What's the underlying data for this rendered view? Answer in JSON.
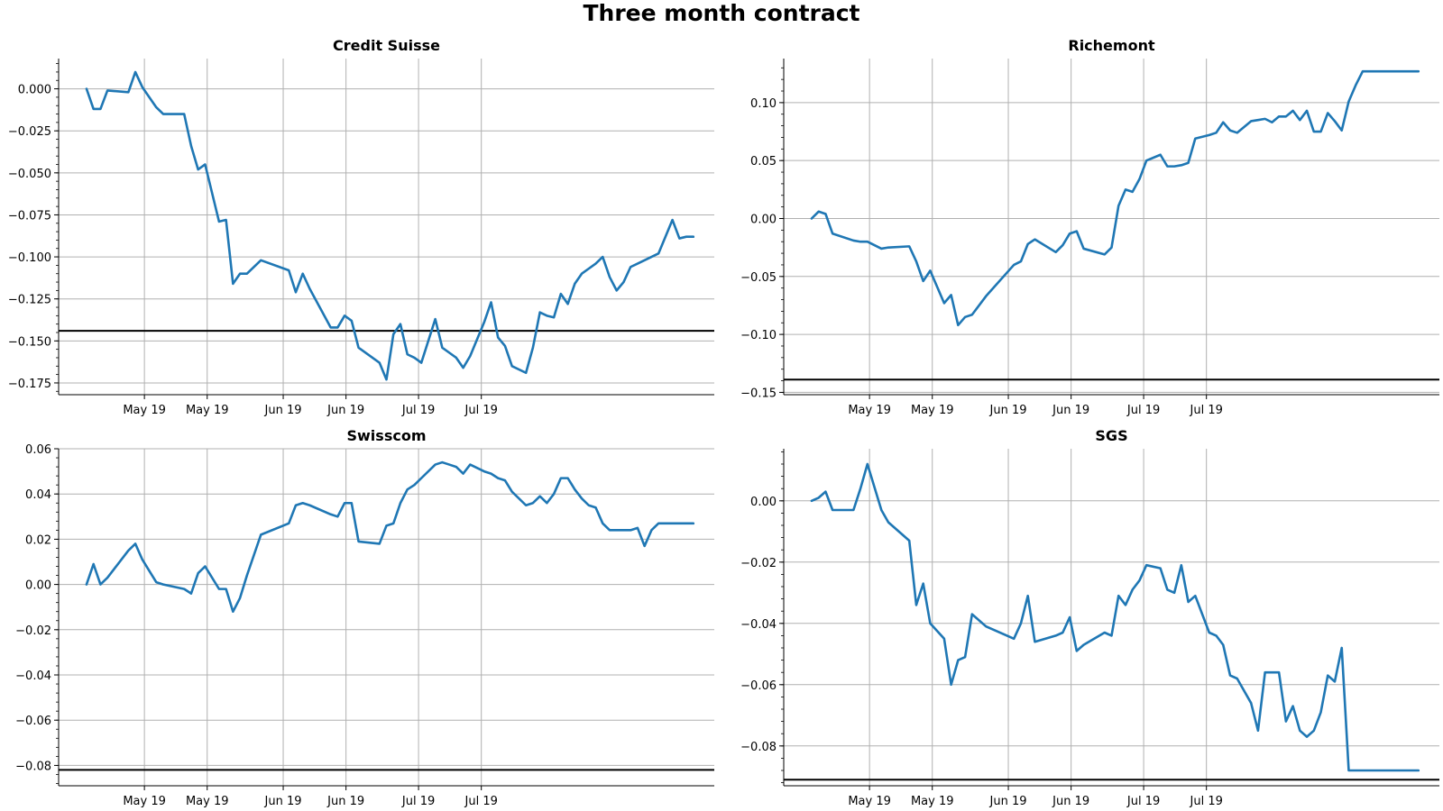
{
  "figure_title": "Three month contract",
  "colors": {
    "series": "#1f77b4",
    "threshold": "#000000",
    "grid": "#b0b0b0",
    "axis": "#000000"
  },
  "chart_data": [
    {
      "type": "line",
      "title": "Credit Suisse",
      "xlabel": "",
      "ylabel": "",
      "x_tick_labels": [
        "May 19",
        "May 19",
        "Jun 19",
        "Jun 19",
        "Jul 19",
        "Jul 19"
      ],
      "y_ticks": [
        -0.175,
        -0.15,
        -0.125,
        -0.1,
        -0.075,
        -0.05,
        -0.025,
        0.0
      ],
      "y_tick_labels": [
        "−0.175",
        "−0.150",
        "−0.125",
        "−0.100",
        "−0.075",
        "−0.050",
        "−0.025",
        "0.000"
      ],
      "ylim": [
        -0.182,
        0.018
      ],
      "grid": true,
      "threshold": -0.144,
      "x": [
        0,
        1,
        2,
        3,
        6,
        7,
        8,
        10,
        11,
        14,
        15,
        16,
        17,
        19,
        20,
        21,
        22,
        23,
        25,
        29,
        30,
        31,
        32,
        35,
        36,
        37,
        38,
        39,
        42,
        43,
        44,
        45,
        46,
        47,
        48,
        50,
        51,
        52,
        53,
        54,
        55,
        57,
        58,
        59,
        60,
        61,
        63,
        64,
        65,
        66,
        67,
        68,
        69,
        70,
        71,
        72,
        73,
        74,
        75,
        76,
        77,
        78,
        79,
        80,
        81,
        82,
        84,
        85,
        86,
        87
      ],
      "values": [
        0.0,
        -0.012,
        -0.012,
        -0.001,
        -0.002,
        0.01,
        0.001,
        -0.011,
        -0.015,
        -0.015,
        -0.034,
        -0.048,
        -0.045,
        -0.079,
        -0.078,
        -0.116,
        -0.11,
        -0.11,
        -0.102,
        -0.108,
        -0.121,
        -0.11,
        -0.119,
        -0.142,
        -0.142,
        -0.135,
        -0.138,
        -0.154,
        -0.163,
        -0.173,
        -0.146,
        -0.14,
        -0.158,
        -0.16,
        -0.163,
        -0.137,
        -0.154,
        -0.157,
        -0.16,
        -0.166,
        -0.159,
        -0.139,
        -0.127,
        -0.148,
        -0.153,
        -0.165,
        -0.169,
        -0.154,
        -0.133,
        -0.135,
        -0.136,
        -0.122,
        -0.128,
        -0.116,
        -0.11,
        -0.107,
        -0.104,
        -0.1,
        -0.112,
        -0.12,
        -0.115,
        -0.106,
        -0.104,
        -0.102,
        -0.1,
        -0.098,
        -0.078,
        -0.089,
        -0.088,
        -0.088
      ]
    },
    {
      "type": "line",
      "title": "Richemont",
      "xlabel": "",
      "ylabel": "",
      "x_tick_labels": [
        "May 19",
        "May 19",
        "Jun 19",
        "Jun 19",
        "Jul 19",
        "Jul 19"
      ],
      "y_ticks": [
        -0.15,
        -0.1,
        -0.05,
        0.0,
        0.05,
        0.1
      ],
      "y_tick_labels": [
        "−0.15",
        "−0.10",
        "−0.05",
        "0.00",
        "0.05",
        "0.10"
      ],
      "ylim": [
        -0.152,
        0.138
      ],
      "grid": true,
      "threshold": -0.139,
      "x": [
        0,
        1,
        2,
        3,
        6,
        7,
        8,
        10,
        11,
        14,
        15,
        16,
        17,
        19,
        20,
        21,
        22,
        23,
        25,
        29,
        30,
        31,
        32,
        35,
        36,
        37,
        38,
        39,
        42,
        43,
        44,
        45,
        46,
        47,
        48,
        50,
        51,
        52,
        53,
        54,
        55,
        57,
        58,
        59,
        60,
        61,
        63,
        64,
        65,
        66,
        67,
        68,
        69,
        70,
        71,
        72,
        73,
        74,
        75,
        76,
        77,
        78,
        79,
        80,
        81,
        82,
        84,
        85,
        86,
        87
      ],
      "values": [
        0.0,
        0.006,
        0.004,
        -0.013,
        -0.019,
        -0.02,
        -0.02,
        -0.026,
        -0.025,
        -0.024,
        -0.037,
        -0.054,
        -0.045,
        -0.073,
        -0.066,
        -0.092,
        -0.085,
        -0.083,
        -0.067,
        -0.04,
        -0.037,
        -0.022,
        -0.018,
        -0.029,
        -0.023,
        -0.013,
        -0.011,
        -0.026,
        -0.031,
        -0.025,
        0.011,
        0.025,
        0.023,
        0.034,
        0.05,
        0.055,
        0.045,
        0.045,
        0.046,
        0.048,
        0.069,
        0.072,
        0.074,
        0.083,
        0.076,
        0.074,
        0.084,
        0.085,
        0.086,
        0.083,
        0.088,
        0.088,
        0.093,
        0.085,
        0.093,
        0.075,
        0.075,
        0.091,
        0.084,
        0.076,
        0.101,
        0.115,
        0.127,
        0.127,
        0.127,
        0.127,
        0.127,
        0.127,
        0.127,
        0.127
      ]
    },
    {
      "type": "line",
      "title": "Swisscom",
      "xlabel": "",
      "ylabel": "",
      "x_tick_labels": [
        "May 19",
        "May 19",
        "Jun 19",
        "Jun 19",
        "Jul 19",
        "Jul 19"
      ],
      "y_ticks": [
        -0.08,
        -0.06,
        -0.04,
        -0.02,
        0.0,
        0.02,
        0.04,
        0.06
      ],
      "y_tick_labels": [
        "−0.08",
        "−0.06",
        "−0.04",
        "−0.02",
        "0.00",
        "0.02",
        "0.04",
        "0.06"
      ],
      "ylim": [
        -0.089,
        0.06
      ],
      "grid": true,
      "threshold": -0.082,
      "x": [
        0,
        1,
        2,
        3,
        6,
        7,
        8,
        10,
        11,
        14,
        15,
        16,
        17,
        19,
        20,
        21,
        22,
        23,
        25,
        29,
        30,
        31,
        32,
        35,
        36,
        37,
        38,
        39,
        42,
        43,
        44,
        45,
        46,
        47,
        48,
        50,
        51,
        52,
        53,
        54,
        55,
        57,
        58,
        59,
        60,
        61,
        63,
        64,
        65,
        66,
        67,
        68,
        69,
        70,
        71,
        72,
        73,
        74,
        75,
        76,
        77,
        78,
        79,
        80,
        81,
        82,
        84,
        85,
        86,
        87
      ],
      "values": [
        0.0,
        0.009,
        0.0,
        0.003,
        0.015,
        0.018,
        0.011,
        0.001,
        0.0,
        -0.002,
        -0.004,
        0.005,
        0.008,
        -0.002,
        -0.002,
        -0.012,
        -0.006,
        0.004,
        0.022,
        0.027,
        0.035,
        0.036,
        0.035,
        0.031,
        0.03,
        0.036,
        0.036,
        0.019,
        0.018,
        0.026,
        0.027,
        0.036,
        0.042,
        0.044,
        0.047,
        0.053,
        0.054,
        0.053,
        0.052,
        0.049,
        0.053,
        0.05,
        0.049,
        0.047,
        0.046,
        0.041,
        0.035,
        0.036,
        0.039,
        0.036,
        0.04,
        0.047,
        0.047,
        0.042,
        0.038,
        0.035,
        0.034,
        0.027,
        0.024,
        0.024,
        0.024,
        0.024,
        0.025,
        0.017,
        0.024,
        0.027,
        0.027,
        0.027,
        0.027,
        0.027
      ]
    },
    {
      "type": "line",
      "title": "SGS",
      "xlabel": "",
      "ylabel": "",
      "x_tick_labels": [
        "May 19",
        "May 19",
        "Jun 19",
        "Jun 19",
        "Jul 19",
        "Jul 19"
      ],
      "y_ticks": [
        -0.08,
        -0.06,
        -0.04,
        -0.02,
        0.0
      ],
      "y_tick_labels": [
        "−0.08",
        "−0.06",
        "−0.04",
        "−0.02",
        "0.00"
      ],
      "ylim": [
        -0.093,
        0.017
      ],
      "grid": true,
      "threshold": -0.091,
      "x": [
        0,
        1,
        2,
        3,
        6,
        7,
        8,
        10,
        11,
        14,
        15,
        16,
        17,
        19,
        20,
        21,
        22,
        23,
        25,
        29,
        30,
        31,
        32,
        35,
        36,
        37,
        38,
        39,
        42,
        43,
        44,
        45,
        46,
        47,
        48,
        50,
        51,
        52,
        53,
        54,
        55,
        57,
        58,
        59,
        60,
        61,
        63,
        64,
        65,
        66,
        67,
        68,
        69,
        70,
        71,
        72,
        73,
        74,
        75,
        76,
        77,
        78,
        79,
        80,
        81,
        82,
        84,
        85,
        86,
        87
      ],
      "values": [
        0.0,
        0.001,
        0.003,
        -0.003,
        -0.003,
        0.004,
        0.012,
        -0.003,
        -0.007,
        -0.013,
        -0.034,
        -0.027,
        -0.04,
        -0.045,
        -0.06,
        -0.052,
        -0.051,
        -0.037,
        -0.041,
        -0.045,
        -0.04,
        -0.031,
        -0.046,
        -0.044,
        -0.043,
        -0.038,
        -0.049,
        -0.047,
        -0.043,
        -0.044,
        -0.031,
        -0.034,
        -0.029,
        -0.026,
        -0.021,
        -0.022,
        -0.029,
        -0.03,
        -0.021,
        -0.033,
        -0.031,
        -0.043,
        -0.044,
        -0.047,
        -0.057,
        -0.058,
        -0.066,
        -0.075,
        -0.056,
        -0.056,
        -0.056,
        -0.072,
        -0.067,
        -0.075,
        -0.077,
        -0.075,
        -0.069,
        -0.057,
        -0.059,
        -0.048,
        -0.088,
        -0.088,
        -0.088,
        -0.088,
        -0.088,
        -0.088,
        -0.088,
        -0.088,
        -0.088,
        -0.088
      ]
    }
  ]
}
